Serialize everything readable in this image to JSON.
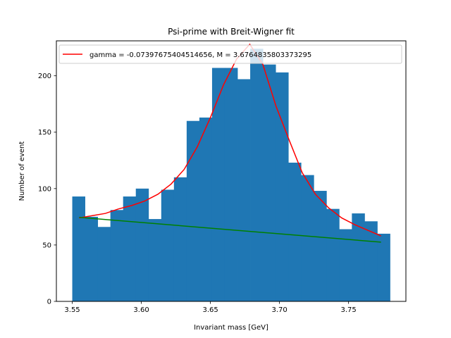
{
  "chart_data": {
    "type": "bar",
    "title": "Psi-prime with Breit-Wigner fit",
    "xlabel": "Invariant mass [GeV]",
    "ylabel": "Number of event",
    "xlim": [
      3.5385,
      3.7915
    ],
    "ylim": [
      0,
      231
    ],
    "xticks": [
      3.55,
      3.6,
      3.65,
      3.7,
      3.75
    ],
    "xtick_labels": [
      "3.55",
      "3.60",
      "3.65",
      "3.70",
      "3.75"
    ],
    "yticks": [
      0,
      50,
      100,
      150,
      200
    ],
    "ytick_labels": [
      "0",
      "50",
      "100",
      "150",
      "200"
    ],
    "grid": false,
    "legend_position": "upper-left",
    "histogram": {
      "color": "#1f77b4",
      "bin_edges": [
        3.55,
        3.5592,
        3.5684,
        3.5776,
        3.5868,
        3.596,
        3.6052,
        3.6144,
        3.6236,
        3.6328,
        3.642,
        3.6512,
        3.6604,
        3.6696,
        3.6788,
        3.688,
        3.6972,
        3.7064,
        3.7156,
        3.7248,
        3.734,
        3.7432,
        3.7524,
        3.7616,
        3.7708,
        3.78
      ],
      "counts": [
        93,
        75,
        66,
        81,
        93,
        100,
        73,
        99,
        110,
        160,
        163,
        207,
        207,
        197,
        224,
        210,
        203,
        123,
        112,
        98,
        82,
        64,
        78,
        71,
        60
      ]
    },
    "series": [
      {
        "name": "gamma = -0.07397675404514656, M = 3.6764835803373295",
        "color": "#ff0000",
        "x": [
          3.555,
          3.5645,
          3.574,
          3.5835,
          3.593,
          3.6025,
          3.612,
          3.6215,
          3.631,
          3.6405,
          3.65,
          3.6595,
          3.669,
          3.6785,
          3.688,
          3.6975,
          3.707,
          3.7165,
          3.726,
          3.7355,
          3.745,
          3.7545,
          3.764,
          3.7735
        ],
        "y": [
          74,
          76,
          78,
          82,
          85,
          89,
          95,
          104,
          117,
          137,
          163,
          192,
          215,
          228,
          210,
          173,
          143,
          114,
          95,
          83,
          74,
          68,
          63,
          58
        ]
      },
      {
        "color": "#008000",
        "x": [
          3.555,
          3.7735
        ],
        "y": [
          74.5,
          52.5
        ]
      }
    ]
  }
}
